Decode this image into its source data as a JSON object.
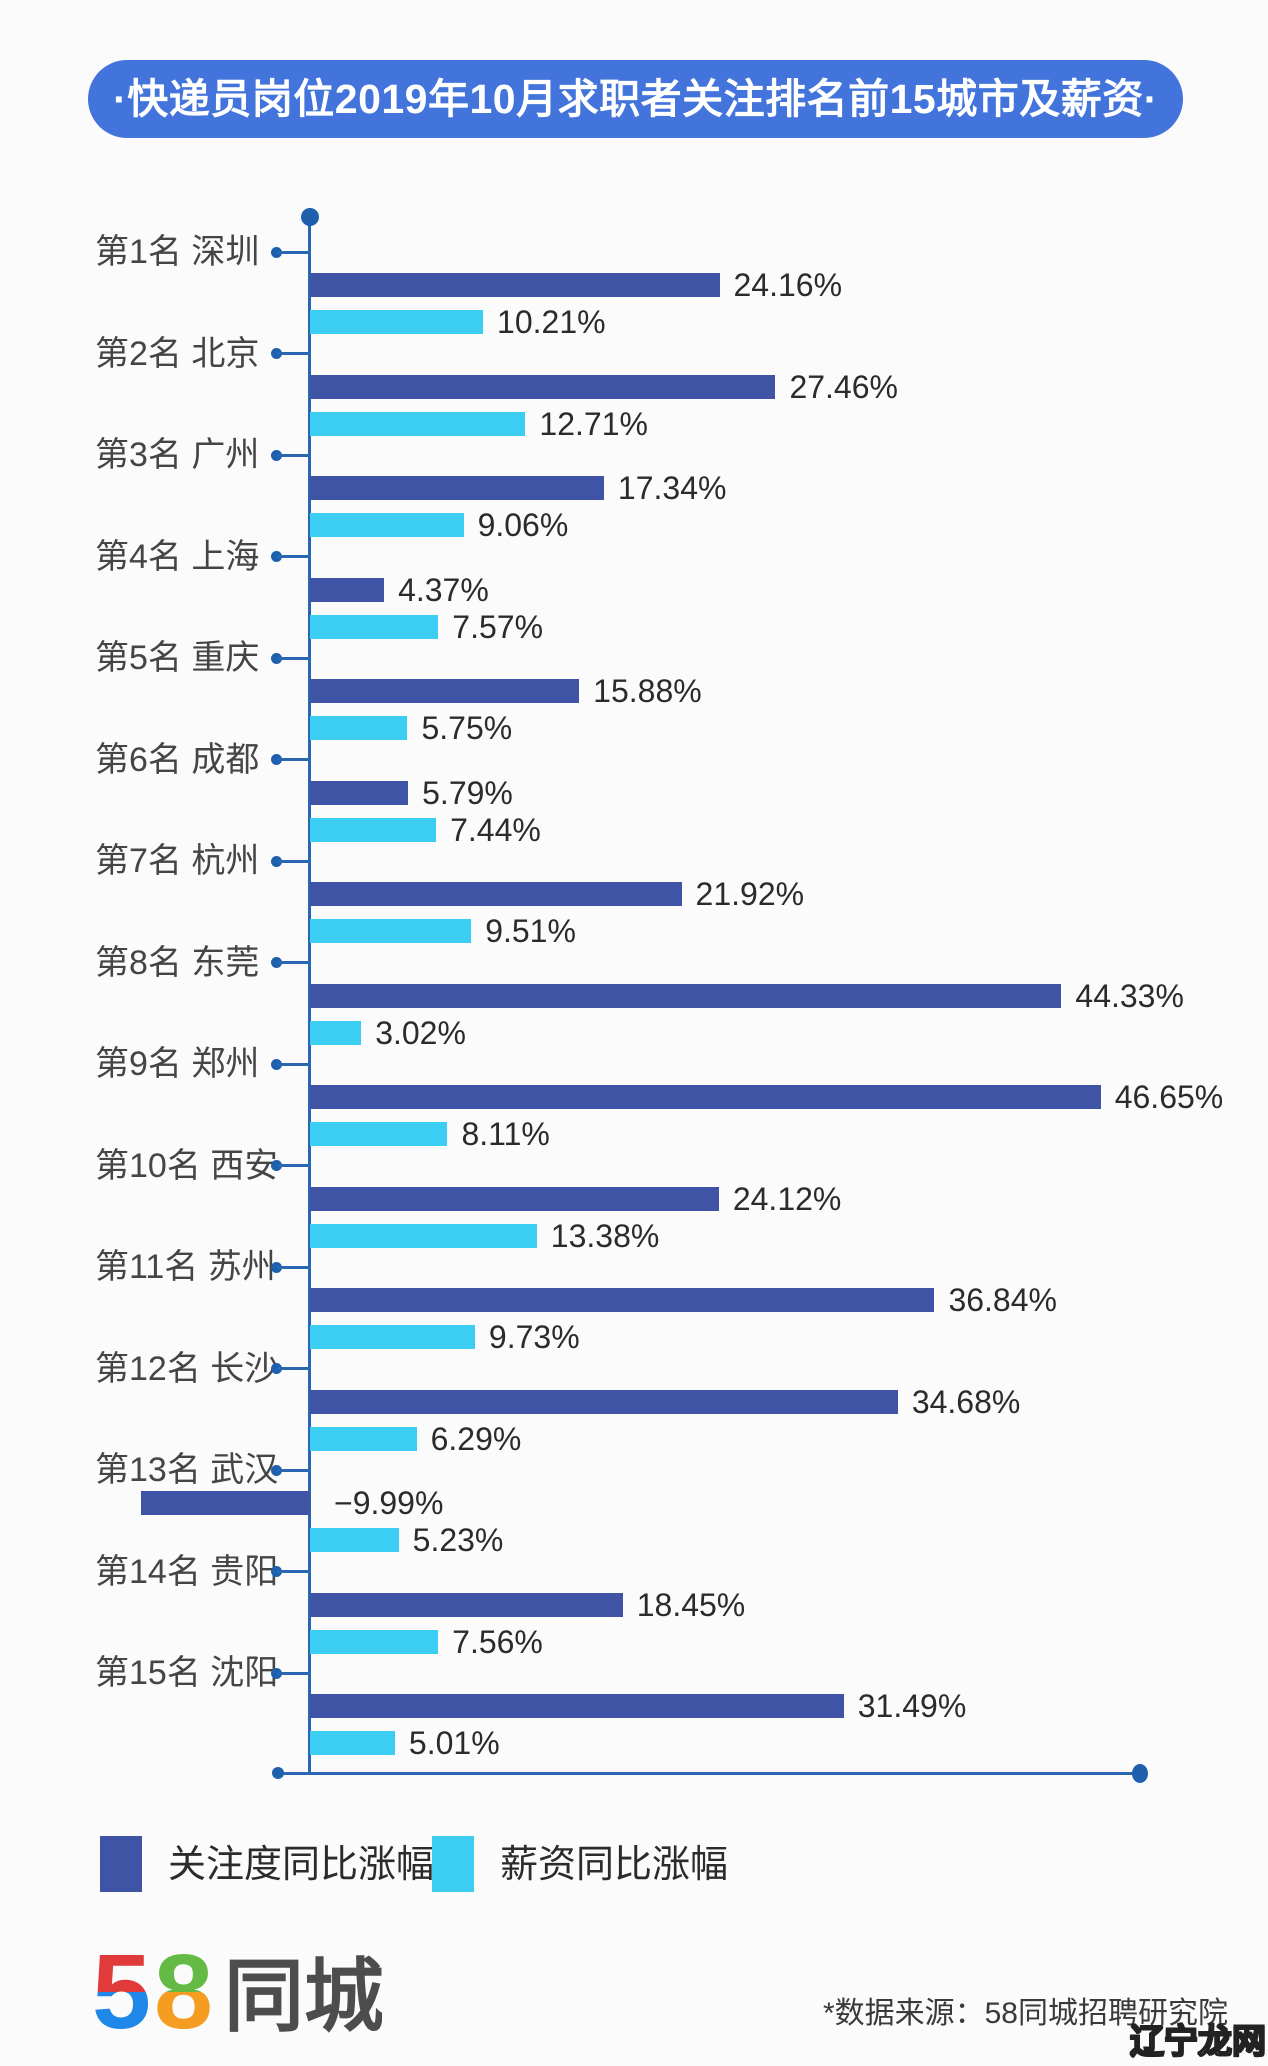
{
  "title": "·快递员岗位2019年10月求职者关注排名前15城市及薪资·",
  "chart_data": {
    "type": "bar",
    "orientation": "horizontal",
    "title": "快递员岗位2019年10月求职者关注排名前15城市及薪资",
    "categories": [
      "第1名 深圳",
      "第2名 北京",
      "第3名 广州",
      "第4名 上海",
      "第5名 重庆",
      "第6名 成都",
      "第7名 杭州",
      "第8名 东莞",
      "第9名 郑州",
      "第10名 西安",
      "第11名 苏州",
      "第12名 长沙",
      "第13名 武汉",
      "第14名 贵阳",
      "第15名 沈阳"
    ],
    "series": [
      {
        "name": "关注度同比涨幅",
        "color": "#3F54A5",
        "values": [
          24.16,
          27.46,
          17.34,
          4.37,
          15.88,
          5.79,
          21.92,
          44.33,
          46.65,
          24.12,
          36.84,
          34.68,
          -9.99,
          18.45,
          31.49
        ]
      },
      {
        "name": "薪资同比涨幅",
        "color": "#3BCDF2",
        "values": [
          10.21,
          12.71,
          9.06,
          7.57,
          5.75,
          7.44,
          9.51,
          3.02,
          8.11,
          13.38,
          9.73,
          6.29,
          5.23,
          7.56,
          5.01
        ]
      }
    ],
    "value_suffix": "%",
    "xlim": [
      -10,
      50
    ],
    "grid": false,
    "legend_position": "bottom"
  },
  "legend": {
    "items": [
      {
        "label": "关注度同比涨幅",
        "color": "#3F54A5"
      },
      {
        "label": "薪资同比涨幅",
        "color": "#3BCDF2"
      }
    ]
  },
  "footer": {
    "logo": {
      "five": "5",
      "eight": "8",
      "cn": "同城"
    },
    "source": "*数据来源：58同城招聘研究院",
    "watermark": {
      "part1": "辽宁",
      "part2": "龙网"
    }
  },
  "colors": {
    "title_bg": "#4274DB",
    "title_text": "#FFFFFF",
    "axis": "#2A67B2",
    "axis_dot": "#1E5FAE",
    "attention_bar": "#3F54A5",
    "salary_bar": "#3BCDF2",
    "value_text": "#2B2B2B",
    "category_text": "#454545",
    "background": "#FBFBFB"
  }
}
